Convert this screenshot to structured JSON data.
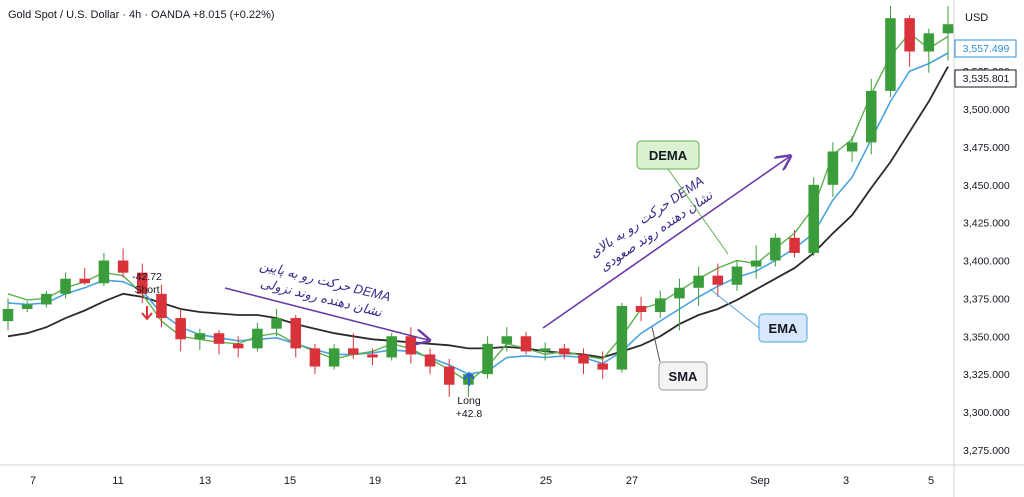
{
  "header": {
    "symbol_line": "Gold Spot / U.S. Dollar · 4h · OANDA  +8.015 (+0.22%)"
  },
  "price_axis": {
    "currency": "USD",
    "ticks": [
      "3,525.000",
      "3,500.000",
      "3,475.000",
      "3,450.000",
      "3,425.000",
      "3,400.000",
      "3,375.000",
      "3,350.000",
      "3,325.000",
      "3,300.000",
      "3,275.000"
    ],
    "badges": [
      {
        "label": "3,557.499",
        "color": "#2a90d8"
      },
      {
        "label": "3,535.801",
        "color": "#131722"
      }
    ]
  },
  "time_axis": {
    "labels": [
      "7",
      "11",
      "13",
      "15",
      "19",
      "21",
      "25",
      "27",
      "Sep",
      "3",
      "5"
    ]
  },
  "annotations": {
    "short_value": "-42.72",
    "short_label": "Short",
    "long_label": "Long",
    "long_value": "+42.8",
    "dema_box": "DEMA",
    "ema_box": "EMA",
    "sma_box": "SMA",
    "down_text_1": "حرکت رو به پایین DEMA",
    "down_text_2": "نشان دهنده روند نزولی",
    "up_text_1": "حرکت رو به بالای DEMA",
    "up_text_2": "نشان دهنده روند صعودی"
  },
  "colors": {
    "bull": "#3a9c3a",
    "bear": "#d8323a",
    "dema": "#5fb04f",
    "ema": "#4aa3df",
    "sma": "#2b2b2b",
    "arrow": "#6a3aa8"
  },
  "chart_data": {
    "type": "candlestick",
    "ylim": [
      3265,
      3572
    ],
    "series": [
      {
        "name": "DEMA",
        "values": [
          3378,
          3374,
          3375,
          3382,
          3386,
          3392,
          3390,
          3378,
          3360,
          3350,
          3348,
          3346,
          3345,
          3350,
          3352,
          3345,
          3340,
          3335,
          3338,
          3340,
          3345,
          3342,
          3335,
          3328,
          3320,
          3330,
          3345,
          3342,
          3338,
          3340,
          3337,
          3335,
          3350,
          3368,
          3372,
          3380,
          3388,
          3395,
          3400,
          3398,
          3408,
          3418,
          3435,
          3470,
          3480,
          3510,
          3535,
          3550,
          3540,
          3548
        ]
      },
      {
        "name": "EMA",
        "values": [
          3372,
          3371,
          3372,
          3378,
          3382,
          3387,
          3386,
          3380,
          3365,
          3356,
          3351,
          3349,
          3347,
          3348,
          3349,
          3345,
          3341,
          3338,
          3338,
          3339,
          3341,
          3340,
          3336,
          3331,
          3325,
          3327,
          3336,
          3337,
          3336,
          3337,
          3336,
          3332,
          3340,
          3352,
          3360,
          3368,
          3376,
          3383,
          3389,
          3393,
          3400,
          3408,
          3418,
          3440,
          3455,
          3480,
          3505,
          3525,
          3530,
          3537
        ]
      },
      {
        "name": "SMA",
        "values": [
          3350,
          3352,
          3356,
          3362,
          3367,
          3373,
          3378,
          3376,
          3372,
          3368,
          3366,
          3365,
          3364,
          3364,
          3362,
          3358,
          3355,
          3352,
          3350,
          3348,
          3347,
          3346,
          3345,
          3344,
          3342,
          3342,
          3343,
          3342,
          3340,
          3339,
          3338,
          3336,
          3340,
          3344,
          3350,
          3358,
          3364,
          3368,
          3374,
          3381,
          3388,
          3395,
          3405,
          3418,
          3430,
          3448,
          3465,
          3485,
          3505,
          3528
        ]
      }
    ],
    "candles": [
      [
        3360,
        3375,
        3354,
        3368
      ],
      [
        3368,
        3373,
        3366,
        3371
      ],
      [
        3371,
        3380,
        3369,
        3378
      ],
      [
        3378,
        3392,
        3375,
        3388
      ],
      [
        3388,
        3395,
        3384,
        3385
      ],
      [
        3385,
        3405,
        3383,
        3400
      ],
      [
        3400,
        3408,
        3389,
        3392
      ],
      [
        3392,
        3398,
        3372,
        3378
      ],
      [
        3378,
        3384,
        3356,
        3362
      ],
      [
        3362,
        3368,
        3340,
        3348
      ],
      [
        3348,
        3355,
        3341,
        3352
      ],
      [
        3352,
        3354,
        3338,
        3345
      ],
      [
        3345,
        3350,
        3336,
        3342
      ],
      [
        3342,
        3359,
        3340,
        3355
      ],
      [
        3355,
        3368,
        3350,
        3362
      ],
      [
        3362,
        3364,
        3336,
        3342
      ],
      [
        3342,
        3345,
        3325,
        3330
      ],
      [
        3330,
        3345,
        3328,
        3342
      ],
      [
        3342,
        3352,
        3335,
        3338
      ],
      [
        3338,
        3342,
        3331,
        3336
      ],
      [
        3336,
        3352,
        3334,
        3350
      ],
      [
        3350,
        3356,
        3332,
        3338
      ],
      [
        3338,
        3342,
        3325,
        3330
      ],
      [
        3330,
        3335,
        3310,
        3318
      ],
      [
        3318,
        3326,
        3310,
        3325
      ],
      [
        3325,
        3350,
        3322,
        3345
      ],
      [
        3345,
        3356,
        3340,
        3350
      ],
      [
        3350,
        3353,
        3338,
        3340
      ],
      [
        3340,
        3346,
        3334,
        3342
      ],
      [
        3342,
        3345,
        3335,
        3338
      ],
      [
        3338,
        3342,
        3325,
        3332
      ],
      [
        3332,
        3340,
        3322,
        3328
      ],
      [
        3328,
        3372,
        3326,
        3370
      ],
      [
        3370,
        3376,
        3360,
        3366
      ],
      [
        3366,
        3380,
        3362,
        3375
      ],
      [
        3375,
        3388,
        3354,
        3382
      ],
      [
        3382,
        3396,
        3370,
        3390
      ],
      [
        3390,
        3398,
        3376,
        3384
      ],
      [
        3384,
        3400,
        3380,
        3396
      ],
      [
        3396,
        3410,
        3388,
        3400
      ],
      [
        3400,
        3418,
        3396,
        3415
      ],
      [
        3415,
        3420,
        3402,
        3405
      ],
      [
        3405,
        3455,
        3403,
        3450
      ],
      [
        3450,
        3478,
        3442,
        3472
      ],
      [
        3472,
        3482,
        3465,
        3478
      ],
      [
        3478,
        3520,
        3470,
        3512
      ],
      [
        3512,
        3568,
        3508,
        3560
      ],
      [
        3560,
        3562,
        3528,
        3538
      ],
      [
        3538,
        3553,
        3524,
        3550
      ],
      [
        3550,
        3568,
        3532,
        3556
      ]
    ]
  }
}
